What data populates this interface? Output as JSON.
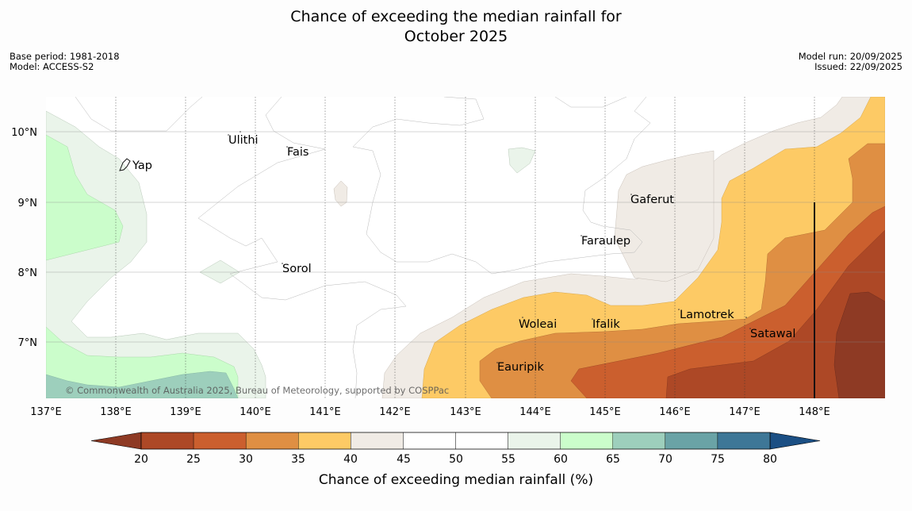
{
  "title": {
    "line1": "Chance of exceeding the median rainfall for",
    "line2": "October 2025"
  },
  "meta": {
    "base_period": "Base period: 1981-2018",
    "model": "Model: ACCESS-S2",
    "model_run": "Model run: 20/09/2025",
    "issued": "Issued: 22/09/2025"
  },
  "map": {
    "lat_labels": [
      "10°N",
      "9°N",
      "8°N",
      "7°N"
    ],
    "lon_labels": [
      "137°E",
      "138°E",
      "139°E",
      "140°E",
      "141°E",
      "142°E",
      "143°E",
      "144°E",
      "145°E",
      "146°E",
      "147°E",
      "148°E"
    ],
    "places": [
      "Yap",
      "Ulithi",
      "Fais",
      "Gaferut",
      "Faraulep",
      "Sorol",
      "Woleai",
      "Ifalik",
      "Lamotrek",
      "Satawal",
      "Eauripik"
    ],
    "copyright": "© Commonwealth of Australia 2025, Bureau of Meteorology, supported by COSPPac"
  },
  "legend": {
    "ticks": [
      "20",
      "25",
      "30",
      "35",
      "40",
      "45",
      "50",
      "55",
      "60",
      "65",
      "70",
      "75",
      "80"
    ],
    "label": "Chance of exceeding median rainfall (%)",
    "colors": [
      "#ad4826",
      "#cb5f2e",
      "#df8f43",
      "#fdca65",
      "#f0ebe5",
      "#ffffff",
      "#ffffff",
      "#eaf4ea",
      "#cbfdcb",
      "#9dcfbc",
      "#6aa3a6",
      "#3e7797"
    ],
    "under_color": "#8e3a24",
    "over_color": "#1b4f84"
  }
}
